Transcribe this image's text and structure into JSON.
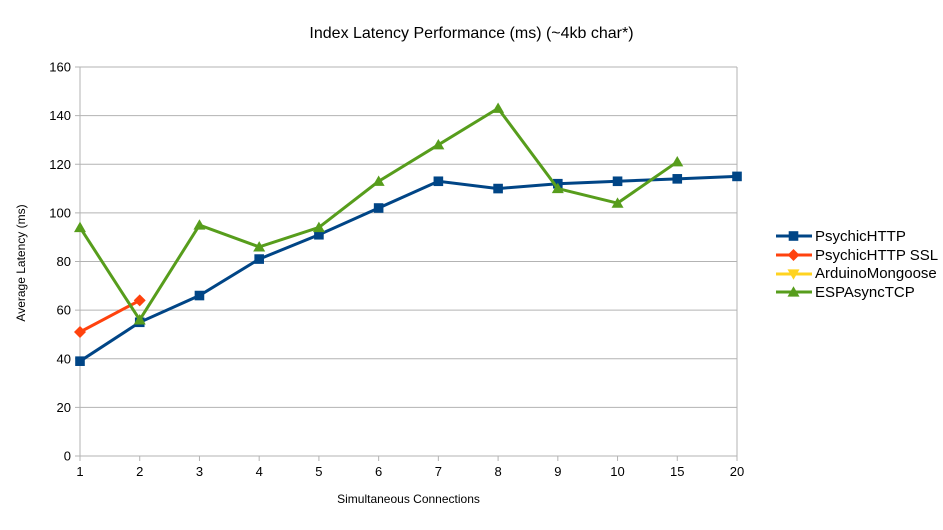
{
  "chart_data": {
    "type": "line",
    "title": "Index Latency Performance (ms) (~4kb char*)",
    "xlabel": "Simultaneous Connections",
    "ylabel": "Average Latency (ms)",
    "ylim": [
      0,
      160
    ],
    "ytick_step": 20,
    "ytick_labels": [
      "0",
      "20",
      "40",
      "60",
      "80",
      "100",
      "120",
      "140",
      "160"
    ],
    "grid": "horizontal",
    "grid_color": "#b3b3b3",
    "axis_color": "#b3b3b3",
    "text_color": "#000000",
    "background": "#ffffff",
    "legend_position": "right",
    "categories": [
      "1",
      "2",
      "3",
      "4",
      "5",
      "6",
      "7",
      "8",
      "9",
      "10",
      "15",
      "20"
    ],
    "series": [
      {
        "name": "PsychicHTTP",
        "color": "#004586",
        "marker": "square",
        "values": [
          39,
          55,
          66,
          81,
          91,
          102,
          113,
          110,
          112,
          113,
          114,
          115
        ]
      },
      {
        "name": "PsychicHTTP SSL",
        "color": "#ff420e",
        "marker": "diamond",
        "values": [
          51,
          64,
          null,
          null,
          null,
          null,
          null,
          null,
          null,
          null,
          null,
          null
        ]
      },
      {
        "name": "ArduinoMongoose",
        "color": "#ffd320",
        "marker": "triangle-down",
        "values": [
          null,
          null,
          null,
          null,
          null,
          null,
          null,
          null,
          null,
          null,
          null,
          null
        ]
      },
      {
        "name": "ESPAsyncTCP",
        "color": "#579d1c",
        "marker": "triangle-up",
        "values": [
          94,
          56,
          95,
          86,
          94,
          113,
          128,
          143,
          110,
          104,
          121,
          null
        ]
      }
    ]
  }
}
